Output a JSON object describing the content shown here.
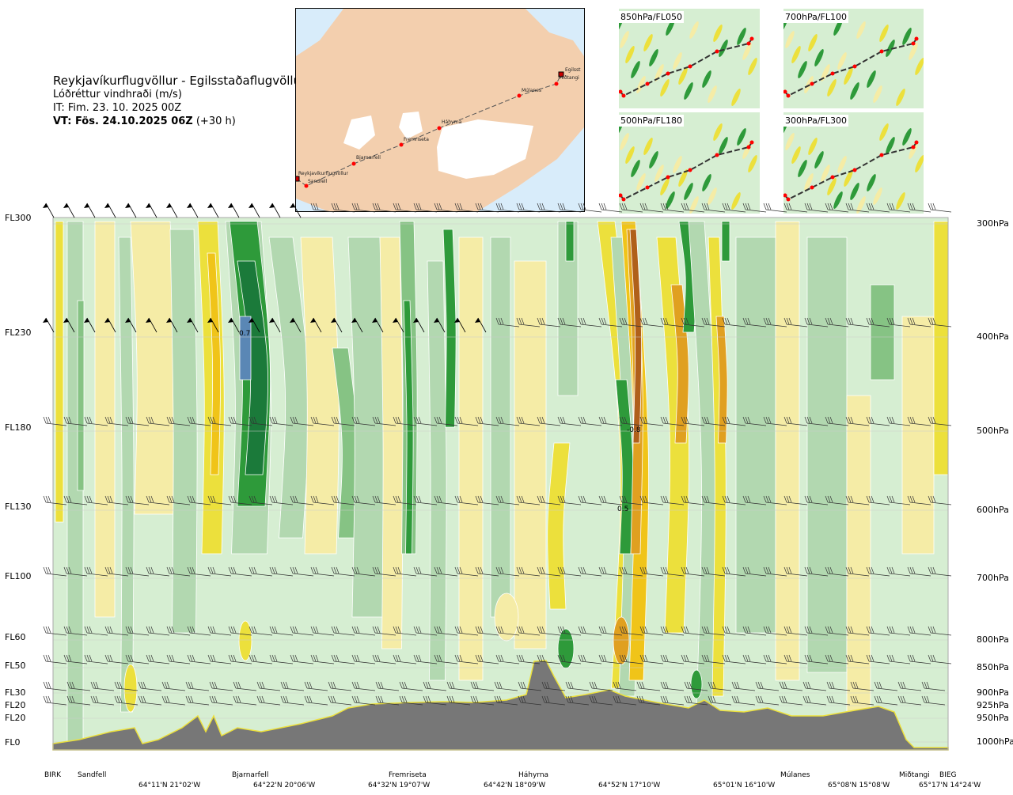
{
  "header": {
    "title": "Reykjavíkurflugvöllur - Egilsstaðaflugvöllur",
    "variable": "Lóðréttur vindhraði (m/s)",
    "issue_time": "IT: Fim. 23. 10. 2025 00Z",
    "valid_time_bold": "VT: Fös. 24.10.2025 06Z",
    "valid_time_offset": "(+30 h)"
  },
  "map": {
    "stations": [
      "Reykjavíkurflugvöllur",
      "Sandfell",
      "Bjarnarfell",
      "Fremriseta",
      "Háhyrna",
      "Múlanes",
      "Miðtangi",
      "Egilsst"
    ]
  },
  "panels": [
    "850hPa/FL050",
    "700hPa/FL100",
    "500hPa/FL180",
    "300hPa/FL300"
  ],
  "chart_data": {
    "type": "heatmap",
    "title": "Reykjavíkurflugvöllur - Egilsstaðaflugvöllur",
    "variable": "Vertical wind speed (m/s)",
    "y_left_labels": [
      "FL300",
      "FL230",
      "FL180",
      "FL130",
      "FL100",
      "FL60",
      "FL50",
      "FL30",
      "FL20",
      "FL20",
      "FL0"
    ],
    "y_right_labels": [
      "300hPa",
      "400hPa",
      "500hPa",
      "600hPa",
      "700hPa",
      "800hPa",
      "850hPa",
      "900hPa",
      "925hPa",
      "950hPa",
      "1000hPa"
    ],
    "x_stations": [
      "BIRK",
      "Sandfell",
      "Bjarnarfell",
      "Fremriseta",
      "Háhyrna",
      "Múlanes",
      "Miðtangi",
      "BIEG"
    ],
    "x_coords": [
      "64°11'N 21°02'W",
      "64°22'N 20°06'W",
      "64°32'N 19°07'W",
      "64°42'N 18°09'W",
      "64°52'N 17°10'W",
      "65°01'N 16°10'W",
      "65°08'N 15°08'W",
      "65°17'N 14°24'W"
    ],
    "contour_labels": [
      "0.7",
      "-0.8",
      "0.5"
    ],
    "colors": {
      "strong_up": "#1b7a3a",
      "up": "#2e9a3a",
      "weak_up": "#b2d8b0",
      "weak_down": "#f5eca6",
      "down": "#ece03c",
      "strong_down": "#b0601a",
      "terrain": "#777777",
      "max_up": "#5a87b5"
    }
  }
}
